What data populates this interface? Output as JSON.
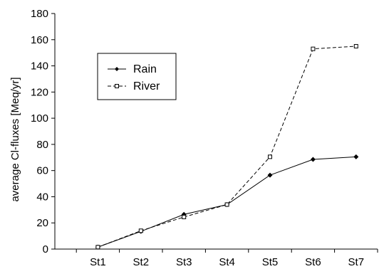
{
  "chart_data": {
    "type": "line",
    "xlabel": "",
    "ylabel": "average Cl-fluxes [Meq/yr]",
    "categories": [
      "St1",
      "St2",
      "St3",
      "St4",
      "St5",
      "St6",
      "St7"
    ],
    "ylim": [
      0,
      180
    ],
    "yticks": [
      "0",
      "20",
      "40",
      "60",
      "80",
      "100",
      "120",
      "140",
      "160",
      "180"
    ],
    "grid": false,
    "legend_position": "top-left",
    "series": [
      {
        "name": "Rain",
        "style": "solid",
        "marker": "diamond",
        "color": "#000000",
        "values": [
          1.5,
          13.5,
          26.5,
          34,
          56.5,
          68.5,
          70.5
        ]
      },
      {
        "name": "River",
        "style": "dashed",
        "marker": "square",
        "color": "#000000",
        "values": [
          1.5,
          14,
          24.5,
          34,
          70.5,
          153,
          155
        ]
      }
    ]
  }
}
